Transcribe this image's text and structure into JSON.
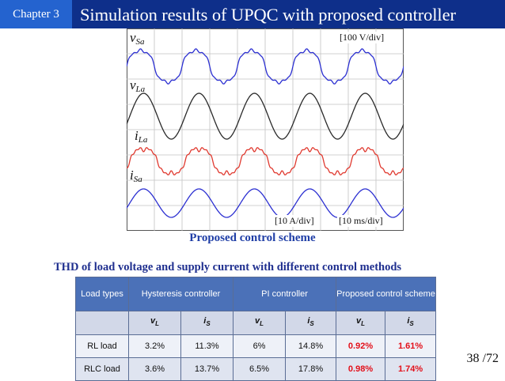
{
  "header": {
    "chapter": "Chapter 3",
    "title": "Simulation results of UPQC with proposed controller"
  },
  "scope": {
    "voltage_scale": "[100 V/div]",
    "current_scale": "[10 A/div]",
    "time_scale": "[10 ms/div]",
    "traces": [
      {
        "symbol": "v",
        "sub": "Sa",
        "color": "#2b2fd1"
      },
      {
        "symbol": "v",
        "sub": "La",
        "color": "#2a2a2a"
      },
      {
        "symbol": "i",
        "sub": "La",
        "color": "#e03a30"
      },
      {
        "symbol": "i",
        "sub": "Sa",
        "color": "#2b2fd1"
      }
    ]
  },
  "caption": "Proposed control scheme",
  "thd": {
    "title": "THD of load voltage and supply current with different control methods",
    "header": {
      "load_types": "Load types",
      "hysteresis": "Hysteresis controller",
      "pi": "PI controller",
      "proposed": "Proposed control scheme"
    },
    "sub": {
      "vL": "v",
      "vL_sub": "L",
      "iS": "i",
      "iS_sub": "S"
    },
    "rows": [
      {
        "load": "RL load",
        "hyst_vL": "3.2%",
        "hyst_iS": "11.3%",
        "pi_vL": "6%",
        "pi_iS": "14.8%",
        "prop_vL": "0.92%",
        "prop_iS": "1.61%"
      },
      {
        "load": "RLC load",
        "hyst_vL": "3.6%",
        "hyst_iS": "13.7%",
        "pi_vL": "6.5%",
        "pi_iS": "17.8%",
        "prop_vL": "0.98%",
        "prop_iS": "1.74%"
      }
    ],
    "highlight_color": "#e3101a"
  },
  "page": "38 /72"
}
